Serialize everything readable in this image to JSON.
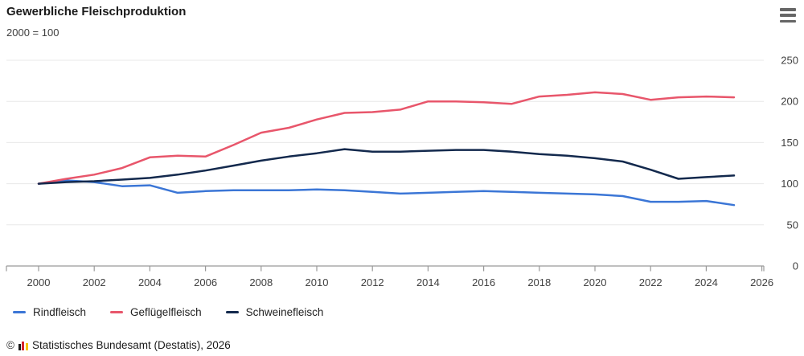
{
  "header": {
    "title": "Gewerbliche Fleischproduktion",
    "subtitle": "2000 = 100"
  },
  "menu": {
    "icon": "hamburger-menu-icon"
  },
  "legend": {
    "position": "bottom-left"
  },
  "footer": {
    "copyright_symbol": "©",
    "source_text": "Statistisches Bundesamt (Destatis), 2026",
    "logo": "destatis-bar-logo"
  },
  "colors": {
    "rindfleisch": "#3b76d6",
    "gefluegelfleisch": "#e8566b",
    "schweinefleisch": "#13294d",
    "gridline": "#e8e8e8",
    "axis": "#999999",
    "label": "#404040"
  },
  "chart_data": {
    "type": "line",
    "title": "Gewerbliche Fleischproduktion",
    "subtitle": "2000 = 100",
    "x": [
      2000,
      2001,
      2002,
      2003,
      2004,
      2005,
      2006,
      2007,
      2008,
      2009,
      2010,
      2011,
      2012,
      2013,
      2014,
      2015,
      2016,
      2017,
      2018,
      2019,
      2020,
      2021,
      2022,
      2023,
      2024,
      2025
    ],
    "series": [
      {
        "name": "Rindfleisch",
        "color": "#3b76d6",
        "values": [
          100,
          104,
          102,
          97,
          98,
          89,
          91,
          92,
          92,
          92,
          93,
          92,
          90,
          88,
          89,
          90,
          91,
          90,
          89,
          88,
          87,
          85,
          78,
          78,
          79,
          74
        ]
      },
      {
        "name": "Geflügelfleisch",
        "color": "#e8566b",
        "values": [
          100,
          106,
          111,
          119,
          132,
          134,
          133,
          147,
          162,
          168,
          178,
          186,
          187,
          190,
          200,
          200,
          199,
          197,
          206,
          208,
          211,
          209,
          202,
          205,
          206,
          205
        ]
      },
      {
        "name": "Schweinefleisch",
        "color": "#13294d",
        "values": [
          100,
          102,
          103,
          105,
          107,
          111,
          116,
          122,
          128,
          133,
          137,
          142,
          139,
          139,
          140,
          141,
          141,
          139,
          136,
          134,
          131,
          127,
          117,
          106,
          108,
          110
        ]
      }
    ],
    "xlabel": "",
    "ylabel": "",
    "ylim": [
      0,
      250
    ],
    "yticks": [
      0,
      50,
      100,
      150,
      200,
      250
    ],
    "xticks": [
      2000,
      2002,
      2004,
      2006,
      2008,
      2010,
      2012,
      2014,
      2016,
      2018,
      2020,
      2022,
      2024,
      2026
    ],
    "grid": "horizontal",
    "y_axis_side": "right",
    "legend_position": "bottom-left"
  }
}
